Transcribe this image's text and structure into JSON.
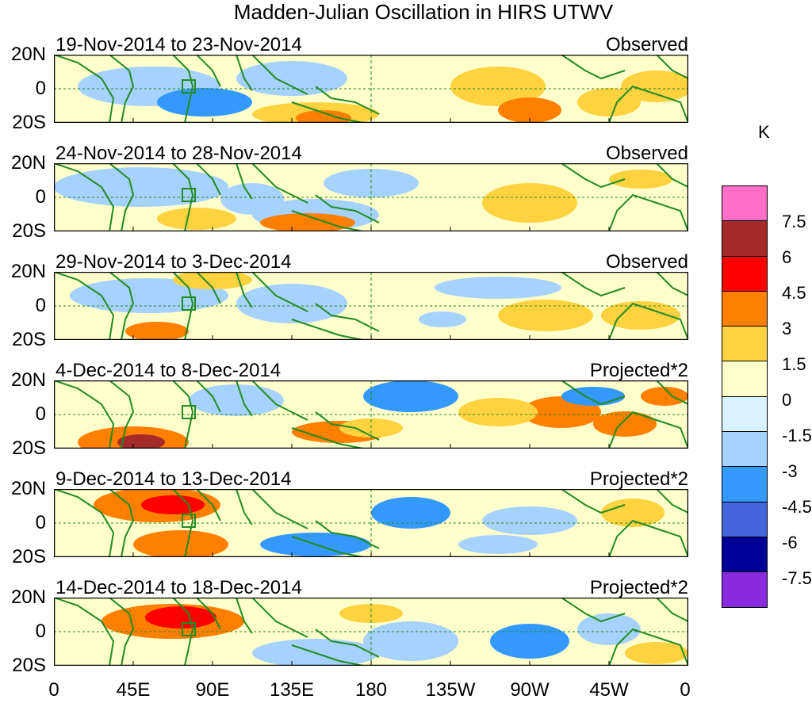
{
  "title": "Madden-Julian Oscillation in HIRS UTWV",
  "panels": [
    {
      "date_range": "19-Nov-2014 to 23-Nov-2014",
      "type": "Observed"
    },
    {
      "date_range": "24-Nov-2014 to 28-Nov-2014",
      "type": "Observed"
    },
    {
      "date_range": "29-Nov-2014 to 3-Dec-2014",
      "type": "Observed"
    },
    {
      "date_range": "4-Dec-2014 to 8-Dec-2014",
      "type": "Projected*2"
    },
    {
      "date_range": "9-Dec-2014 to 13-Dec-2014",
      "type": "Projected*2"
    },
    {
      "date_range": "14-Dec-2014 to 18-Dec-2014",
      "type": "Projected*2"
    }
  ],
  "lat_labels": [
    "20N",
    "0",
    "20S"
  ],
  "lon_labels": [
    "0",
    "45E",
    "90E",
    "135E",
    "180",
    "135W",
    "90W",
    "45W",
    "0"
  ],
  "colorbar": {
    "unit": "K",
    "labels": [
      "7.5",
      "6",
      "4.5",
      "3",
      "1.5",
      "0",
      "-1.5",
      "-3",
      "-4.5",
      "-6",
      "-7.5"
    ],
    "colors": [
      "#ff6ec7",
      "#a52a2a",
      "#ff0000",
      "#ff7f00",
      "#ffd23f",
      "#ffffcc",
      "#d9f2ff",
      "#a6d2ff",
      "#3399ff",
      "#4466dd",
      "#000099",
      "#8a2be2"
    ]
  },
  "land_color": "#228b22",
  "dash_color": "#228b22"
}
